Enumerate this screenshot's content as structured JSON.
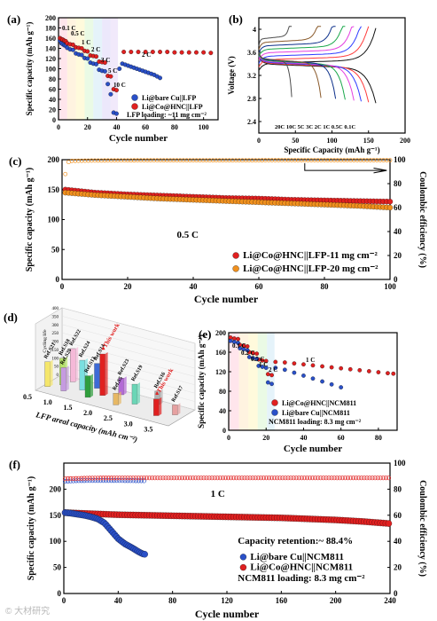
{
  "watermark": "© 大材研究",
  "chart_data": [
    {
      "id": "a",
      "panel_label": "(a)",
      "type": "scatter",
      "xlabel": "Cycle number",
      "ylabel": "Specific capacity (mAh g⁻¹)",
      "xlim": [
        0,
        110
      ],
      "ylim": [
        0,
        200
      ],
      "xticks": [
        0,
        20,
        40,
        60,
        80,
        100
      ],
      "yticks": [
        0,
        20,
        40,
        60,
        80,
        100,
        120,
        140,
        160,
        180,
        200
      ],
      "rate_labels": [
        "0.1 C",
        "0.5 C",
        "1 C",
        "2 C",
        "3 C",
        "5 C",
        "10 C",
        "2 C"
      ],
      "series": [
        {
          "name": "Li@bare Cu||LFP",
          "color": "#2a50c8",
          "x": [
            1,
            2,
            3,
            4,
            5,
            6,
            8,
            10,
            12,
            14,
            16,
            18,
            20,
            22,
            24,
            26,
            28,
            30,
            32,
            34,
            36,
            38,
            40,
            42,
            44,
            46,
            48,
            50,
            52,
            54,
            56,
            58,
            60,
            62,
            64,
            66,
            68,
            70
          ],
          "y": [
            155,
            150,
            148,
            146,
            145,
            141,
            138,
            137,
            130,
            128,
            127,
            121,
            120,
            112,
            110,
            109,
            98,
            96,
            95,
            70,
            50,
            14,
            12,
            100,
            110,
            108,
            106,
            104,
            102,
            100,
            98,
            96,
            94,
            92,
            90,
            88,
            85,
            82
          ]
        },
        {
          "name": "Li@Co@HNC||LFP",
          "color": "#e02020",
          "x": [
            1,
            2,
            3,
            4,
            5,
            6,
            8,
            10,
            12,
            14,
            16,
            18,
            20,
            22,
            24,
            26,
            28,
            30,
            32,
            34,
            36,
            38,
            40,
            45,
            50,
            55,
            60,
            65,
            70,
            75,
            80,
            85,
            90,
            95,
            100,
            105
          ],
          "y": [
            160,
            158,
            157,
            155,
            154,
            150,
            148,
            147,
            142,
            141,
            140,
            135,
            134,
            126,
            125,
            124,
            114,
            113,
            112,
            86,
            85,
            60,
            58,
            133,
            133,
            133,
            133,
            133,
            133,
            133,
            132,
            132,
            132,
            132,
            132,
            131
          ]
        }
      ],
      "annotations": [
        "LFP loading: ~11 mg cm⁻²"
      ],
      "legend_position": "lower-right"
    },
    {
      "id": "b",
      "panel_label": "(b)",
      "type": "line",
      "xlabel": "Specific Capacity (mAh g⁻¹)",
      "ylabel": "Voltage (V)",
      "xlim": [
        0,
        200
      ],
      "ylim": [
        2.2,
        4.2
      ],
      "xticks": [
        0,
        50,
        100,
        150,
        200
      ],
      "yticks": [
        2.4,
        2.8,
        3.2,
        3.6,
        4.0
      ],
      "curve_labels": "20C 10C 5C 3C 2C 1C 0.5C 0.1C",
      "series": [
        {
          "name": "0.1C",
          "color": "#111111",
          "capacity": 160
        },
        {
          "name": "0.5C",
          "color": "#ff3b3b",
          "capacity": 150
        },
        {
          "name": "1C",
          "color": "#2d3cff",
          "capacity": 140
        },
        {
          "name": "2C",
          "color": "#e53fe0",
          "capacity": 130
        },
        {
          "name": "3C",
          "color": "#1aa84b",
          "capacity": 118
        },
        {
          "name": "5C",
          "color": "#0b2f8a",
          "capacity": 105
        },
        {
          "name": "10C",
          "color": "#8a5a2b",
          "capacity": 85
        },
        {
          "name": "20C",
          "color": "#4d4d4d",
          "capacity": 45
        }
      ]
    },
    {
      "id": "c",
      "panel_label": "(c)",
      "type": "scatter",
      "xlabel": "Cycle number",
      "ylabel": "Specific capacity (mAh g⁻¹)",
      "y2label": "Coulombic efficiency (%)",
      "xlim": [
        0,
        100
      ],
      "ylim": [
        0,
        200
      ],
      "y2lim": [
        0,
        100
      ],
      "xticks": [
        0,
        20,
        40,
        60,
        80,
        100
      ],
      "yticks": [
        0,
        50,
        100,
        150,
        200
      ],
      "y2ticks": [
        0,
        20,
        40,
        60,
        80,
        100
      ],
      "rate": "0.5 C",
      "series": [
        {
          "name": "Li@Co@HNC||LFP-11 mg cm⁻²",
          "color": "#e02020",
          "x": [
            1,
            10,
            20,
            30,
            40,
            50,
            60,
            70,
            80,
            90,
            100
          ],
          "y": [
            150,
            145,
            142,
            140,
            138,
            136,
            135,
            133,
            132,
            131,
            130
          ]
        },
        {
          "name": "Li@Co@HNC||LFP-20 mg cm⁻²",
          "color": "#f0901e",
          "x": [
            1,
            10,
            20,
            30,
            40,
            50,
            60,
            70,
            80,
            90,
            100
          ],
          "y": [
            145,
            141,
            138,
            135,
            133,
            131,
            129,
            127,
            125,
            123,
            120
          ]
        }
      ],
      "ce": {
        "x": [
          1,
          2,
          3,
          10,
          20,
          30,
          40,
          50,
          60,
          70,
          80,
          90,
          100
        ],
        "y": [
          88,
          98,
          99,
          99.3,
          99.4,
          99.5,
          99.5,
          99.5,
          99.5,
          99.6,
          99.6,
          99.6,
          99.6
        ]
      },
      "legend_position": "lower-right"
    },
    {
      "id": "d",
      "panel_label": "(d)",
      "type": "bar",
      "xlabel": "LFP areal capacity (mAh cm⁻²)",
      "ylabel": "Cycling life",
      "xticks": [
        "0.5",
        "1.0",
        "1.5",
        "2.0",
        "2.5",
        "3.0",
        "3.5"
      ],
      "yticks": [
        0,
        50,
        100,
        150,
        200,
        250,
        300,
        350,
        400
      ],
      "bars": [
        {
          "label": "Ref.S21",
          "cap": 0.6,
          "value": 150,
          "color": "#f5e66a"
        },
        {
          "label": "Ref.S18",
          "cap": 0.8,
          "value": 160,
          "color": "#b7e56a"
        },
        {
          "label": "Ref.S22",
          "cap": 0.9,
          "value": 200,
          "color": "#f5b9d8"
        },
        {
          "label": "Ref.S20",
          "cap": 1.0,
          "value": 140,
          "color": "#c59be0"
        },
        {
          "label": "Ref.S24",
          "cap": 1.3,
          "value": 180,
          "color": "#7adfe0"
        },
        {
          "label": "Ref.S14",
          "cap": 1.5,
          "value": 150,
          "color": "#3d6ad6"
        },
        {
          "label": "Ref.S13",
          "cap": 1.6,
          "value": 130,
          "color": "#2e9e3c"
        },
        {
          "label": "This work",
          "cap": 1.8,
          "value": 250,
          "color": "#e02020"
        },
        {
          "label": "Ref.S23",
          "cap": 2.1,
          "value": 100,
          "color": "#b36ad6"
        },
        {
          "label": "Ref.S5",
          "cap": 2.3,
          "value": 70,
          "color": "#e7b864"
        },
        {
          "label": "Ref.S19",
          "cap": 2.6,
          "value": 120,
          "color": "#6ad6b6"
        },
        {
          "label": "Ref.S16",
          "cap": 3.0,
          "value": 80,
          "color": "#b0b0b0"
        },
        {
          "label": "This work",
          "cap": 3.3,
          "value": 100,
          "color": "#e02020"
        },
        {
          "label": "Ref.S17",
          "cap": 3.6,
          "value": 60,
          "color": "#e6a0a0"
        }
      ]
    },
    {
      "id": "e",
      "panel_label": "(e)",
      "type": "scatter",
      "xlabel": "Cycle number",
      "ylabel": "Specific capacity (mAh g⁻¹)",
      "xlim": [
        0,
        90
      ],
      "ylim": [
        0,
        200
      ],
      "xticks": [
        0,
        20,
        40,
        60,
        80
      ],
      "yticks": [
        0,
        40,
        80,
        120,
        160,
        200
      ],
      "rate_labels": [
        "0.1 C",
        "0.2 C",
        "0.5 C",
        "1 C",
        "2 C",
        "1 C"
      ],
      "series": [
        {
          "name": "Li@Co@HNC||NCM811",
          "color": "#e02020",
          "x": [
            1,
            3,
            5,
            6,
            8,
            10,
            11,
            13,
            15,
            16,
            18,
            20,
            21,
            23,
            25,
            30,
            35,
            40,
            45,
            50,
            55,
            60,
            65,
            70,
            75,
            80,
            85,
            88
          ],
          "y": [
            190,
            188,
            187,
            175,
            173,
            172,
            160,
            158,
            157,
            145,
            143,
            142,
            115,
            113,
            140,
            139,
            137,
            135,
            133,
            131,
            129,
            127,
            125,
            123,
            121,
            119,
            117,
            116
          ]
        },
        {
          "name": "Li@bare Cu||NCM811",
          "color": "#2a50c8",
          "x": [
            1,
            3,
            5,
            6,
            8,
            10,
            11,
            13,
            15,
            16,
            18,
            20,
            21,
            23,
            25,
            30,
            35,
            40,
            45,
            50,
            55,
            60
          ],
          "y": [
            183,
            181,
            179,
            168,
            166,
            164,
            150,
            148,
            146,
            132,
            130,
            128,
            98,
            95,
            128,
            124,
            118,
            112,
            106,
            100,
            94,
            88
          ]
        }
      ],
      "annotations": [
        "NCM811 loading: 8.3 mg cm⁻²"
      ],
      "legend_position": "lower-right"
    },
    {
      "id": "f",
      "panel_label": "(f)",
      "type": "scatter",
      "xlabel": "Cycle number",
      "ylabel": "Specific capacity (mAh g⁻¹)",
      "y2label": "Coulombic efficiency (%)",
      "xlim": [
        0,
        240
      ],
      "ylim": [
        0,
        250
      ],
      "y2lim": [
        0,
        100
      ],
      "xticks": [
        0,
        40,
        80,
        120,
        160,
        200,
        240
      ],
      "yticks": [
        0,
        50,
        100,
        150,
        200
      ],
      "y2ticks": [
        0,
        20,
        40,
        60,
        80,
        100
      ],
      "rate": "1 C",
      "series": [
        {
          "name": "Li@bare Cu||NCM811",
          "color": "#2a50c8",
          "x": [
            1,
            5,
            10,
            15,
            20,
            25,
            30,
            35,
            40,
            45,
            50,
            55,
            58,
            60
          ],
          "y": [
            155,
            154,
            152,
            150,
            147,
            143,
            135,
            120,
            105,
            95,
            88,
            80,
            76,
            75
          ]
        },
        {
          "name": "Li@Co@HNC||NCM811",
          "color": "#e02020",
          "x": [
            1,
            20,
            40,
            60,
            80,
            100,
            120,
            140,
            160,
            180,
            200,
            220,
            240
          ],
          "y": [
            155,
            153,
            151,
            150,
            149,
            148,
            147,
            146,
            145,
            143,
            141,
            138,
            134
          ]
        }
      ],
      "ce": {
        "series": [
          {
            "name": "Li@bare Cu||NCM811",
            "color": "#2a50c8",
            "x": [
              1,
              10,
              20,
              30,
              40,
              50,
              60
            ],
            "y": [
              86,
              86.5,
              86.6,
              86.6,
              86.6,
              86.5,
              86.4
            ]
          },
          {
            "name": "Li@Co@HNC||NCM811",
            "color": "#e02020",
            "x": [
              1,
              20,
              40,
              60,
              80,
              100,
              120,
              140,
              160,
              180,
              200,
              220,
              240
            ],
            "y": [
              88,
              88.5,
              88.6,
              88.6,
              88.6,
              88.6,
              88.6,
              88.6,
              88.6,
              88.6,
              88.6,
              88.6,
              88.6
            ]
          }
        ]
      },
      "annotations": [
        "Capacity retention:~ 88.4%",
        "NCM811 loading: 8.3 mg cm⁻²"
      ],
      "legend_position": "lower-right"
    }
  ]
}
